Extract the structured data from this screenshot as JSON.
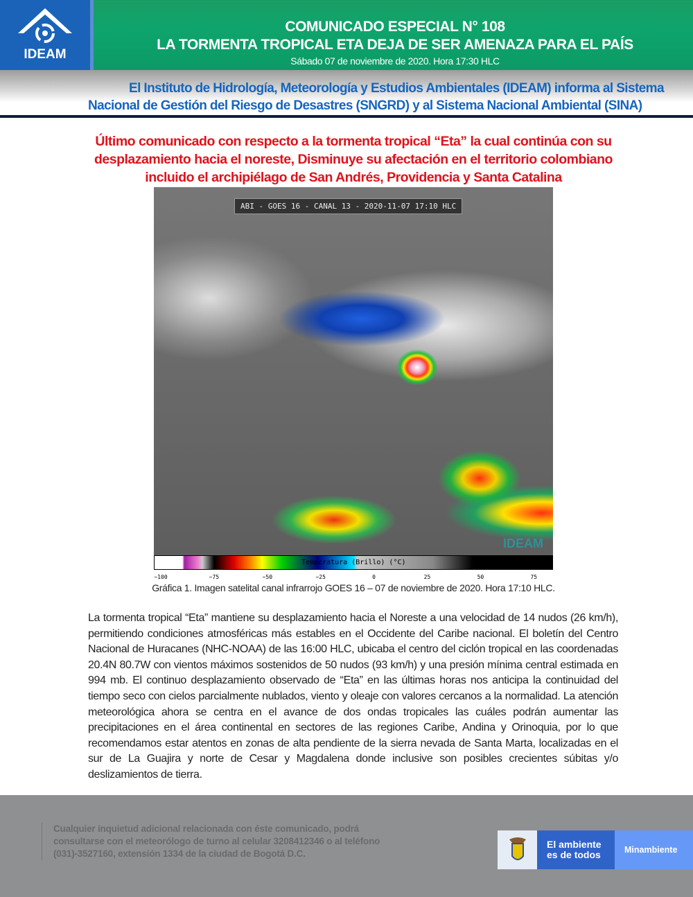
{
  "header": {
    "logo_text": "IDEAM",
    "title_line1": "COMUNICADO ESPECIAL N° 108",
    "title_line2": "LA TORMENTA TROPICAL ETA DEJA DE SER AMENAZA PARA EL PAÍS",
    "date": "Sábado 07 de noviembre de 2020. Hora 17:30 HLC"
  },
  "intro": {
    "line1": "El Instituto de Hidrología, Meteorología y Estudios Ambientales (IDEAM) informa al Sistema",
    "line2": "Nacional de Gestión del Riesgo de Desastres (SNGRD) y al Sistema Nacional Ambiental (SINA)"
  },
  "headline": "Último comunicado con respecto a la tormenta tropical “Eta” la cual continúa con su desplazamiento hacia el noreste, Disminuye su afectación en el territorio colombiano incluido el archipiélago de San Andrés, Providencia y Santa Catalina",
  "figure": {
    "image_label": "ABI - GOES 16 - CANAL 13 - 2020-11-07 17:10 HLC",
    "watermark": "IDEAM",
    "colorbar_label": "Temperatura (Brillo) (°C)",
    "colorbar_ticks": [
      "−100",
      "−75",
      "−50",
      "−25",
      "0",
      "25",
      "50",
      "75"
    ],
    "caption": "Gráfica 1. Imagen satelital canal infrarrojo GOES 16 – 07 de noviembre de 2020. Hora 17:10 HLC."
  },
  "body": "La tormenta tropical “Eta” mantiene su desplazamiento hacia el Noreste a una velocidad de 14 nudos (26 km/h), permitiendo condiciones atmosféricas más estables en el Occidente del Caribe nacional. El boletín del Centro Nacional de Huracanes (NHC-NOAA) de las 16:00 HLC, ubicaba el centro del ciclón tropical en las coordenadas 20.4N 80.7W con vientos máximos sostenidos de 50 nudos (93 km/h) y una presión mínima central estimada en 994 mb. El continuo desplazamiento observado de “Eta” en las últimas horas nos anticipa la continuidad del tiempo seco con cielos parcialmente nublados, viento y oleaje con valores cercanos a la normalidad.  La atención meteorológica ahora se centra en el avance de dos ondas tropicales las cuáles podrán aumentar las precipitaciones en el área continental en sectores de las regiones Caribe, Andina y Orinoquia, por lo que recomendamos estar atentos en zonas de alta pendiente de la sierra nevada de Santa Marta, localizadas en el sur de La Guajira y norte de Cesar y Magdalena donde inclusive son posibles crecientes súbitas y/o deslizamientos de tierra.",
  "footer": {
    "contact": "Cualquier inquietud adicional relacionada con éste comunicado, podrá consultarse con el meteorólogo de turno al celular 3208412346 o al teléfono (031)-3527160, extensión 1334 de la ciudad de Bogotá D.C.",
    "slogan_line1": "El ambiente",
    "slogan_line2": "es de todos",
    "ministry": "Minambiente"
  },
  "colors": {
    "header_green": "#0ea56d",
    "logo_blue": "#1a63b8",
    "intro_blue": "#1565c0",
    "headline_red": "#e0121b",
    "footer_gray": "#8f9092"
  }
}
